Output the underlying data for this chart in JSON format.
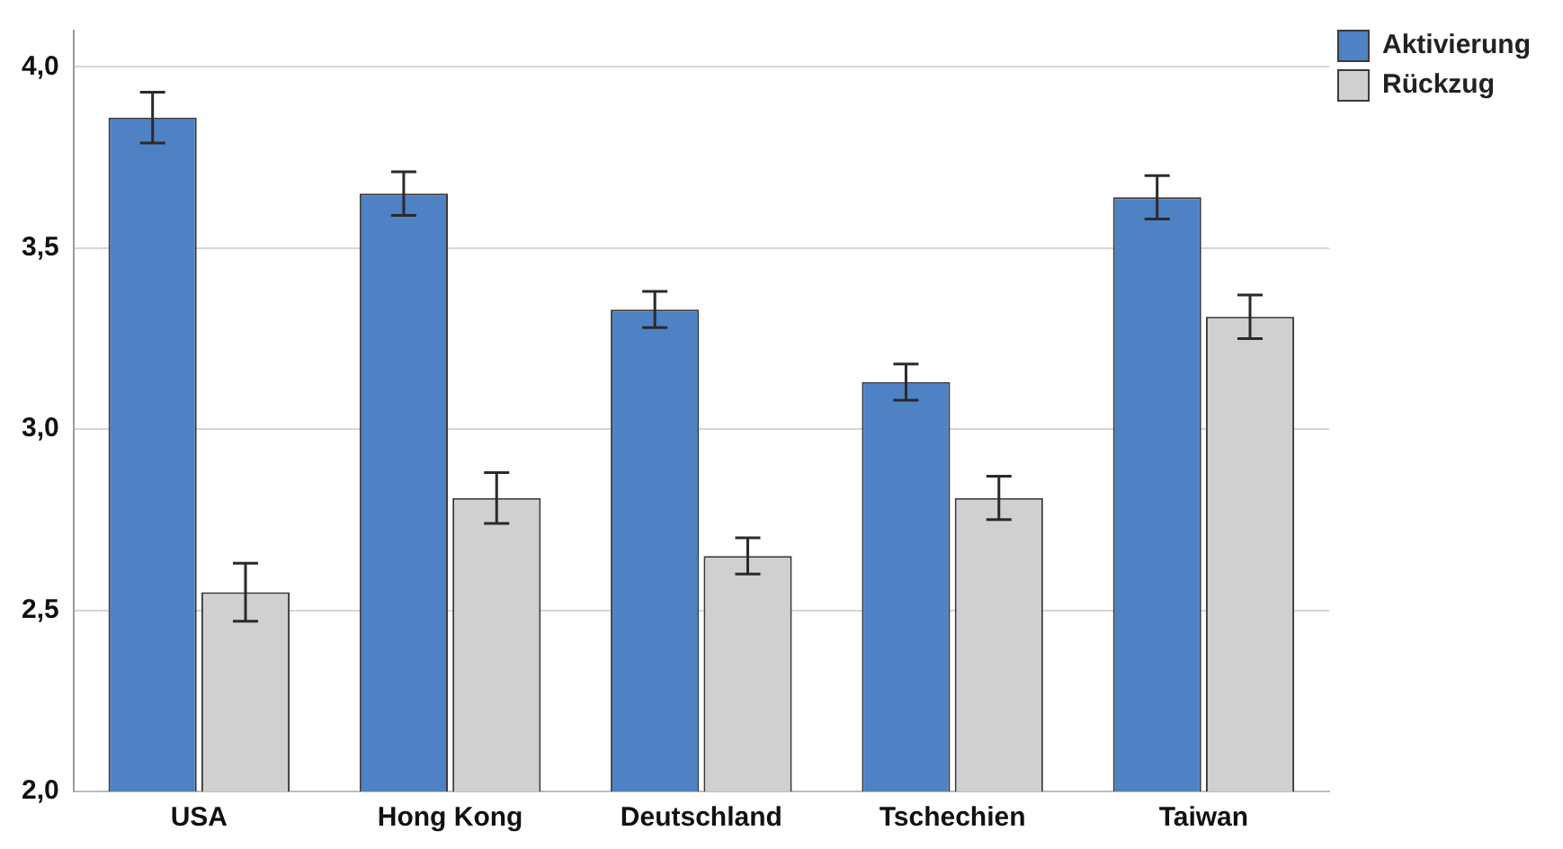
{
  "chart_data": {
    "type": "bar",
    "categories": [
      "USA",
      "Hong Kong",
      "Deutschland",
      "Tschechien",
      "Taiwan"
    ],
    "series": [
      {
        "name": "Aktivierung",
        "color": "#4f81c5",
        "values": [
          3.86,
          3.65,
          3.33,
          3.13,
          3.64
        ],
        "errors": [
          0.07,
          0.06,
          0.05,
          0.05,
          0.06
        ]
      },
      {
        "name": "Rückzug",
        "color": "#d0d0d0",
        "values": [
          2.55,
          2.81,
          2.65,
          2.81,
          3.31
        ],
        "errors": [
          0.08,
          0.07,
          0.05,
          0.06,
          0.06
        ]
      }
    ],
    "ylim": [
      2.0,
      4.1
    ],
    "yticks": [
      {
        "value": 2,
        "label": "2,0"
      },
      {
        "value": 2.5,
        "label": "2,5"
      },
      {
        "value": 3,
        "label": "3,0"
      },
      {
        "value": 3.5,
        "label": "3,5"
      },
      {
        "value": 4,
        "label": "4,0"
      }
    ],
    "grid": "y",
    "legend": "top right"
  }
}
